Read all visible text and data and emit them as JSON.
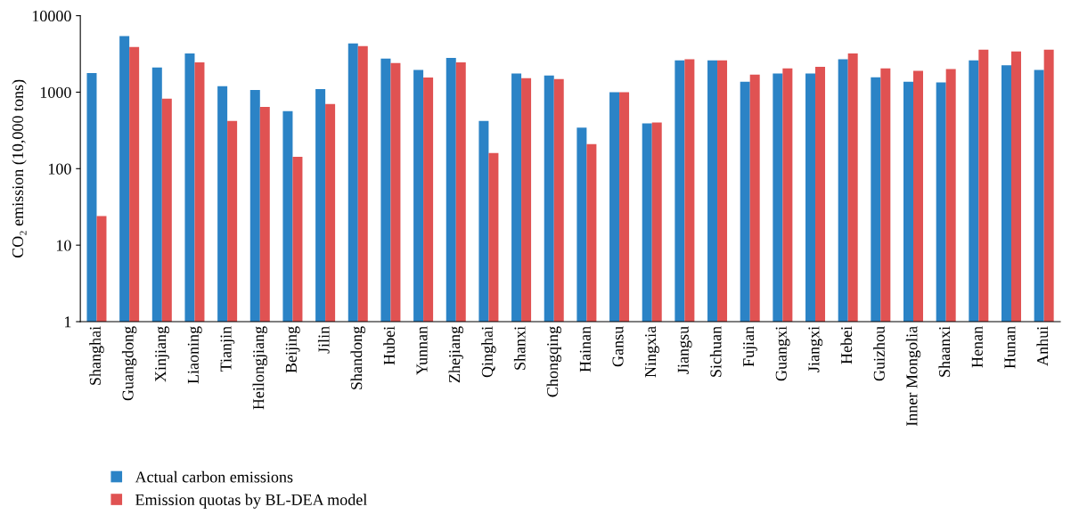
{
  "chart_data": {
    "type": "bar",
    "ylabel": "CO₂ emission (10,000 tons)",
    "categories": [
      "Shanghai",
      "Guangdong",
      "Xinjiang",
      "Liaoning",
      "Tianjin",
      "Heilongjiang",
      "Beijing",
      "Jilin",
      "Shandong",
      "Hubei",
      "Yunnan",
      "Zhejiang",
      "Qinghai",
      "Shanxi",
      "Chongqing",
      "Hainan",
      "Gansu",
      "Ningxia",
      "Jiangsu",
      "Sichuan",
      "Fujian",
      "Guangxi",
      "Jiangxi",
      "Hebei",
      "Guizhou",
      "Inner Mongolia",
      "Shaanxi",
      "Henan",
      "Hunan",
      "Anhui"
    ],
    "series": [
      {
        "name": "Actual carbon emissions",
        "color": "#2b83c6",
        "values": [
          1780,
          5400,
          2100,
          3200,
          1200,
          1070,
          565,
          1100,
          4350,
          2750,
          1950,
          2800,
          420,
          1750,
          1650,
          345,
          1000,
          390,
          2600,
          2600,
          1370,
          1750,
          1750,
          2700,
          1570,
          1370,
          1340,
          2600,
          2250,
          1950
        ]
      },
      {
        "name": "Emission quotas by BL-DEA model",
        "color": "#e05252",
        "values": [
          24,
          3900,
          820,
          2450,
          420,
          640,
          143,
          700,
          4000,
          2400,
          1560,
          2450,
          160,
          1520,
          1480,
          210,
          1000,
          400,
          2700,
          2600,
          1700,
          2050,
          2150,
          3200,
          2050,
          1900,
          2000,
          3600,
          3400,
          3600
        ]
      }
    ],
    "log": "y",
    "ylim": [
      1,
      10000
    ],
    "yticks": [
      1,
      10,
      100,
      1000,
      10000
    ],
    "grid": false,
    "legend": "bottom left"
  }
}
